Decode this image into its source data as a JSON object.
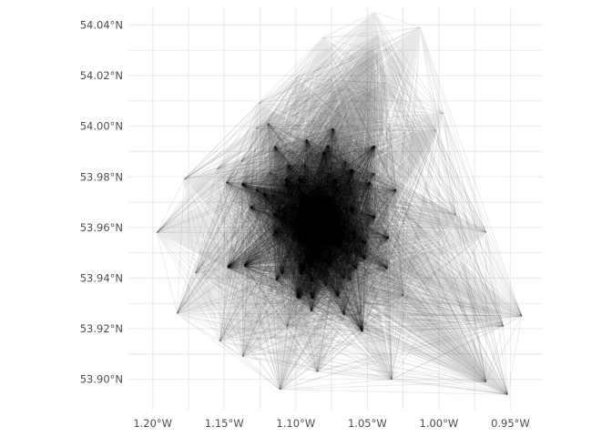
{
  "chart_data": {
    "type": "network-map",
    "title": "",
    "xlabel": "",
    "ylabel": "",
    "xlim": [
      -1.217,
      -0.928
    ],
    "ylim": [
      53.888,
      54.047
    ],
    "grid": true,
    "legend": "none",
    "edge_color": "#000000",
    "edge_alpha": 0.09,
    "x_ticks": [
      {
        "value": -1.2,
        "label": "1.20°W"
      },
      {
        "value": -1.15,
        "label": "1.15°W"
      },
      {
        "value": -1.1,
        "label": "1.10°W"
      },
      {
        "value": -1.05,
        "label": "1.05°W"
      },
      {
        "value": -1.0,
        "label": "1.00°W"
      },
      {
        "value": -0.95,
        "label": "0.95°W"
      }
    ],
    "y_ticks": [
      {
        "value": 53.9,
        "label": "53.90°N"
      },
      {
        "value": 53.92,
        "label": "53.92°N"
      },
      {
        "value": 53.94,
        "label": "53.94°N"
      },
      {
        "value": 53.96,
        "label": "53.96°N"
      },
      {
        "value": 53.98,
        "label": "53.98°N"
      },
      {
        "value": 54.0,
        "label": "54.00°N"
      },
      {
        "value": 54.02,
        "label": "54.02°N"
      },
      {
        "value": 54.04,
        "label": "54.04°N"
      }
    ],
    "outer_nodes": [
      {
        "lon": -1.045,
        "lat": 54.045
      },
      {
        "lon": -1.042,
        "lat": 54.036
      },
      {
        "lon": -1.047,
        "lat": 54.03
      },
      {
        "lon": -1.013,
        "lat": 54.039
      },
      {
        "lon": -1.081,
        "lat": 54.035
      },
      {
        "lon": -1.1,
        "lat": 54.019
      },
      {
        "lon": -1.068,
        "lat": 54.018
      },
      {
        "lon": -1.037,
        "lat": 54.017
      },
      {
        "lon": -1.126,
        "lat": 54.009
      },
      {
        "lon": -0.997,
        "lat": 54.005
      },
      {
        "lon": -1.002,
        "lat": 53.998
      },
      {
        "lon": -1.128,
        "lat": 53.999
      },
      {
        "lon": -1.178,
        "lat": 53.979
      },
      {
        "lon": -1.155,
        "lat": 53.983
      },
      {
        "lon": -1.138,
        "lat": 53.986
      },
      {
        "lon": -0.988,
        "lat": 53.965
      },
      {
        "lon": -0.967,
        "lat": 53.958
      },
      {
        "lon": -1.197,
        "lat": 53.958
      },
      {
        "lon": -1.17,
        "lat": 53.942
      },
      {
        "lon": -1.183,
        "lat": 53.926
      },
      {
        "lon": -1.153,
        "lat": 53.915
      },
      {
        "lon": -1.137,
        "lat": 53.909
      },
      {
        "lon": -1.025,
        "lat": 53.933
      },
      {
        "lon": -1.055,
        "lat": 53.926
      },
      {
        "lon": -1.106,
        "lat": 53.921
      },
      {
        "lon": -0.942,
        "lat": 53.925
      },
      {
        "lon": -0.955,
        "lat": 53.921
      },
      {
        "lon": -1.111,
        "lat": 53.896
      },
      {
        "lon": -1.085,
        "lat": 53.903
      },
      {
        "lon": -1.033,
        "lat": 53.9
      },
      {
        "lon": -0.967,
        "lat": 53.899
      },
      {
        "lon": -0.952,
        "lat": 53.894
      }
    ],
    "core": {
      "center_lon": -1.085,
      "center_lat": 53.962,
      "spread_lon": 0.024,
      "spread_lat": 0.017,
      "node_count": 110
    }
  }
}
